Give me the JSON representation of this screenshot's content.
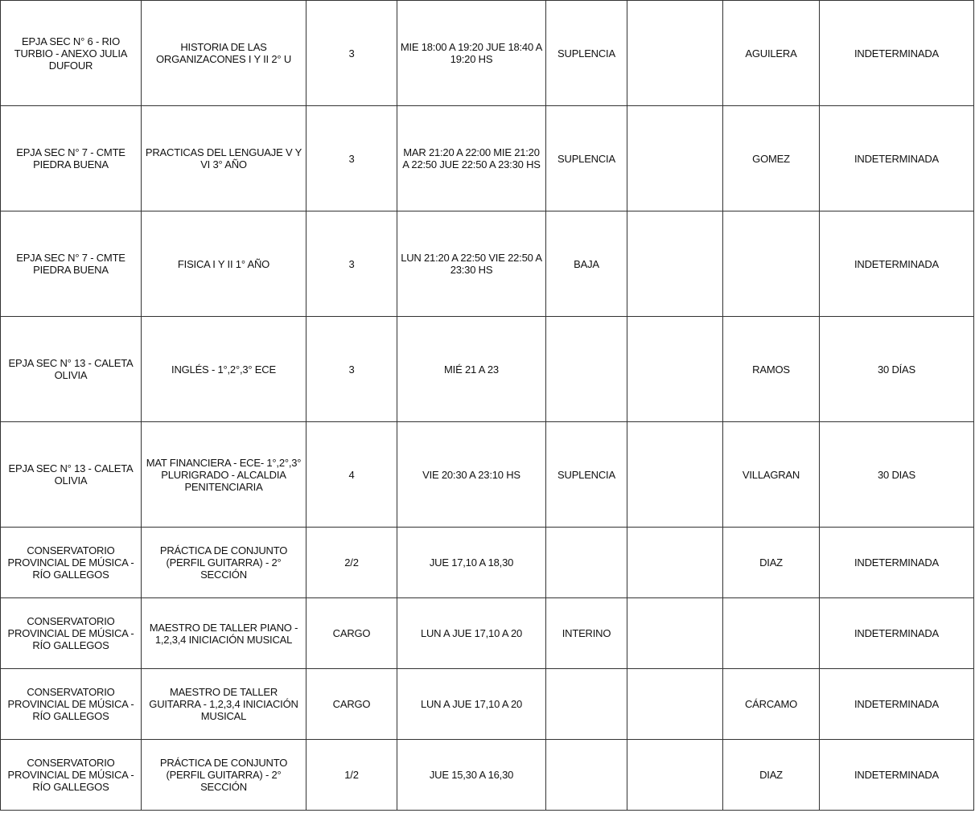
{
  "rows": [
    {
      "escuela": "EPJA SEC N° 6 - RIO TURBIO - ANEXO JULIA DUFOUR",
      "materia": "HISTORIA DE LAS ORGANIZACONES I Y II 2° U",
      "horas": "3",
      "horario": "MIE 18:00 A 19:20 JUE 18:40 A 19:20 HS",
      "situacion": "SUPLENCIA",
      "extra": "",
      "docente": "AGUILERA",
      "duracion": "INDETERMINADA"
    },
    {
      "escuela": "EPJA SEC N° 7 - CMTE PIEDRA BUENA",
      "materia": "PRACTICAS DEL LENGUAJE V Y VI 3° AÑO",
      "horas": "3",
      "horario": "MAR 21:20 A 22:00 MIE 21:20 A 22:50 JUE 22:50 A 23:30 HS",
      "situacion": "SUPLENCIA",
      "extra": "",
      "docente": "GOMEZ",
      "duracion": "INDETERMINADA"
    },
    {
      "escuela": "EPJA SEC N° 7 - CMTE PIEDRA BUENA",
      "materia": "FISICA I Y II 1° AÑO",
      "horas": "3",
      "horario": "LUN 21:20 A 22:50 VIE 22:50 A 23:30 HS",
      "situacion": "BAJA",
      "extra": "",
      "docente": "",
      "duracion": "INDETERMINADA"
    },
    {
      "escuela": "EPJA SEC N° 13 - CALETA OLIVIA",
      "materia": "INGLÉS - 1°,2°,3° ECE",
      "horas": "3",
      "horario": "MIÉ 21 A 23",
      "situacion": "",
      "extra": "",
      "docente": "RAMOS",
      "duracion": "30 DÍAS"
    },
    {
      "escuela": "EPJA SEC N° 13 - CALETA OLIVIA",
      "materia": "MAT FINANCIERA - ECE- 1°,2°,3° PLURIGRADO - ALCALDIA PENITENCIARIA",
      "horas": "4",
      "horario": "VIE 20:30 A 23:10 HS",
      "situacion": "SUPLENCIA",
      "extra": "",
      "docente": "VILLAGRAN",
      "duracion": "30 DIAS"
    },
    {
      "escuela": "CONSERVATORIO PROVINCIAL DE MÚSICA - RÍO GALLEGOS",
      "materia": "PRÁCTICA DE CONJUNTO (PERFIL GUITARRA) - 2° SECCIÓN",
      "horas": "2/2",
      "horario": "JUE 17,10 A 18,30",
      "situacion": "",
      "extra": "",
      "docente": "DIAZ",
      "duracion": "INDETERMINADA"
    },
    {
      "escuela": "CONSERVATORIO PROVINCIAL DE MÚSICA - RÍO GALLEGOS",
      "materia": "MAESTRO DE TALLER PIANO - 1,2,3,4 INICIACIÓN MUSICAL",
      "horas": "CARGO",
      "horario": "LUN A JUE 17,10 A 20",
      "situacion": "INTERINO",
      "extra": "",
      "docente": "",
      "duracion": "INDETERMINADA"
    },
    {
      "escuela": "CONSERVATORIO PROVINCIAL DE MÚSICA - RÍO GALLEGOS",
      "materia": "MAESTRO DE TALLER GUITARRA - 1,2,3,4 INICIACIÓN MUSICAL",
      "horas": "CARGO",
      "horario": "LUN A JUE 17,10 A 20",
      "situacion": "",
      "extra": "",
      "docente": "CÁRCAMO",
      "duracion": "INDETERMINADA"
    },
    {
      "escuela": "CONSERVATORIO PROVINCIAL DE MÚSICA - RÍO GALLEGOS",
      "materia": "PRÁCTICA DE CONJUNTO (PERFIL GUITARRA) - 2° SECCIÓN",
      "horas": "1/2",
      "horario": "JUE 15,30 A 16,30",
      "situacion": "",
      "extra": "",
      "docente": "DIAZ",
      "duracion": "INDETERMINADA"
    }
  ]
}
